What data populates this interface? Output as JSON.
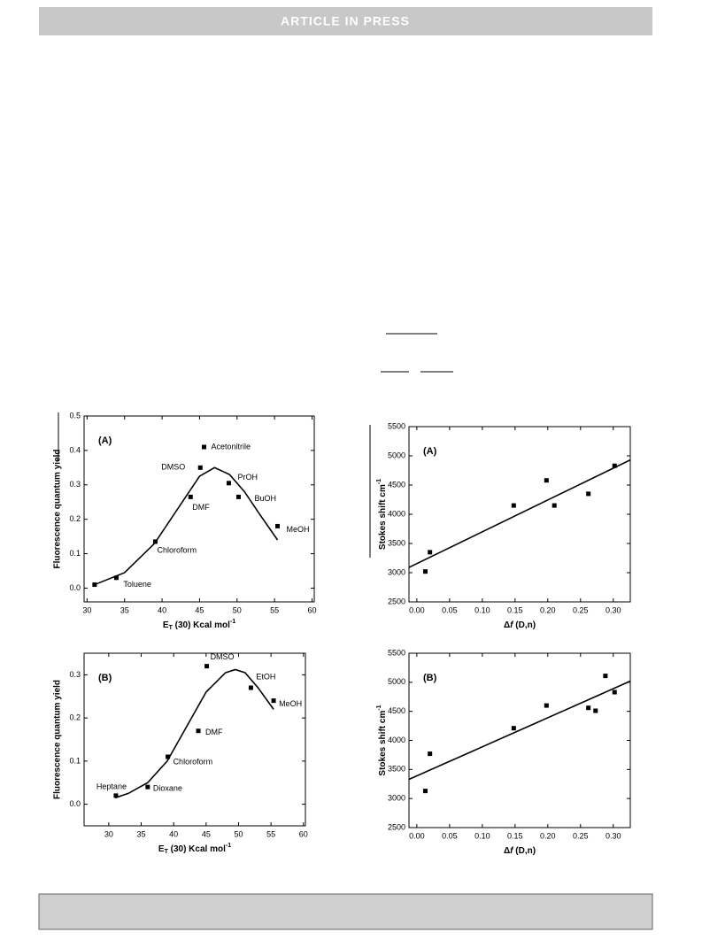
{
  "header": {
    "title": "ARTICLE IN PRESS"
  },
  "chart_data": [
    {
      "type": "scatter",
      "panel": "(A)",
      "color": "#000000",
      "xlabel": [
        "E",
        "T",
        " (30) Kcal mol",
        "-1"
      ],
      "ylabel": "Fluorescence quantum yield",
      "x": [
        31.0,
        33.9,
        39.1,
        43.8,
        45.1,
        45.6,
        48.9,
        50.2,
        55.4
      ],
      "values": [
        0.01,
        0.03,
        0.135,
        0.265,
        0.35,
        0.41,
        0.305,
        0.265,
        0.18
      ],
      "point_labels": [
        null,
        "Toluene",
        "Chloroform",
        "DMF",
        "DMSO",
        "Acetonitrile",
        "PrOH",
        "BuOH",
        "MeOH"
      ],
      "fit": {
        "x": [
          31,
          35,
          39,
          43,
          45,
          47,
          49,
          51,
          53,
          55.4
        ],
        "values": [
          0.01,
          0.045,
          0.13,
          0.26,
          0.325,
          0.35,
          0.33,
          0.28,
          0.215,
          0.14
        ]
      },
      "xlim": [
        29.6,
        60.3
      ],
      "ylim": [
        -0.04,
        0.5
      ],
      "xticks": [
        30,
        35,
        40,
        45,
        50,
        55,
        60
      ],
      "yticks": [
        {
          "value": 0,
          "label": "0.0"
        },
        0.1,
        0.2,
        0.3,
        0.4,
        0.5
      ]
    },
    {
      "type": "scatter",
      "panel": "(A)",
      "color": "#000000",
      "xlabel": [
        "Δ",
        "f",
        " (D,n)"
      ],
      "ylabel": [
        "Stokes shift cm",
        "-1"
      ],
      "x": [
        0.013,
        0.02,
        0.148,
        0.198,
        0.21,
        0.262,
        0.302
      ],
      "values": [
        3020,
        3350,
        4150,
        4580,
        4150,
        4350,
        4830
      ],
      "fit": {
        "x": [
          -0.012,
          0.326
        ],
        "values": [
          3090,
          4930
        ]
      },
      "xlim": [
        -0.012,
        0.326
      ],
      "ylim": [
        2500,
        5500
      ],
      "xticks": [
        {
          "value": 0,
          "label": "0.00"
        },
        {
          "value": 0.05,
          "label": "0.05"
        },
        {
          "value": 0.1,
          "label": "0.10"
        },
        {
          "value": 0.15,
          "label": "0.15"
        },
        {
          "value": 0.2,
          "label": "0.20"
        },
        {
          "value": 0.25,
          "label": "0.25"
        },
        {
          "value": 0.3,
          "label": "0.30"
        }
      ],
      "yticks": [
        2500,
        3000,
        3500,
        4000,
        4500,
        5000,
        5500
      ]
    },
    {
      "type": "scatter",
      "panel": "(B)",
      "color": "#000000",
      "xlabel": [
        "E",
        "T",
        " (30) Kcal mol",
        "-1"
      ],
      "ylabel": "Fluorescence quantum yield",
      "x": [
        31.1,
        36.0,
        39.1,
        43.8,
        45.1,
        51.9,
        55.4
      ],
      "values": [
        0.02,
        0.04,
        0.11,
        0.17,
        0.32,
        0.27,
        0.24
      ],
      "point_labels": [
        "Heptane",
        "Dioxane",
        "Chloroform",
        "DMF",
        "DMSO",
        "EtOH",
        "MeOH"
      ],
      "fit": {
        "x": [
          31,
          33,
          36,
          39,
          42,
          45,
          48,
          49.5,
          51,
          53,
          55.4
        ],
        "values": [
          0.015,
          0.025,
          0.05,
          0.1,
          0.18,
          0.26,
          0.305,
          0.312,
          0.305,
          0.27,
          0.22
        ]
      },
      "xlim": [
        26.2,
        60.3
      ],
      "ylim": [
        -0.05,
        0.35
      ],
      "xticks": [
        30,
        35,
        40,
        45,
        50,
        55,
        60
      ],
      "yticks": [
        {
          "value": 0,
          "label": "0.0"
        },
        0.1,
        0.2,
        0.3
      ]
    },
    {
      "type": "scatter",
      "panel": "(B)",
      "color": "#000000",
      "xlabel": [
        "Δ",
        "f",
        " (D,n)"
      ],
      "ylabel": [
        "Stokes shift cm",
        "-1"
      ],
      "x": [
        0.013,
        0.02,
        0.148,
        0.198,
        0.262,
        0.273,
        0.288,
        0.302
      ],
      "values": [
        3130,
        3770,
        4210,
        4600,
        4560,
        4510,
        5110,
        4830
      ],
      "fit": {
        "x": [
          -0.012,
          0.326
        ],
        "values": [
          3330,
          5020
        ]
      },
      "xlim": [
        -0.012,
        0.326
      ],
      "ylim": [
        2500,
        5500
      ],
      "xticks": [
        {
          "value": 0,
          "label": "0.00"
        },
        {
          "value": 0.05,
          "label": "0.05"
        },
        {
          "value": 0.1,
          "label": "0.10"
        },
        {
          "value": 0.15,
          "label": "0.15"
        },
        {
          "value": 0.2,
          "label": "0.20"
        },
        {
          "value": 0.25,
          "label": "0.25"
        },
        {
          "value": 0.3,
          "label": "0.30"
        }
      ],
      "yticks": [
        2500,
        3000,
        3500,
        4000,
        4500,
        5000,
        5500
      ]
    }
  ]
}
